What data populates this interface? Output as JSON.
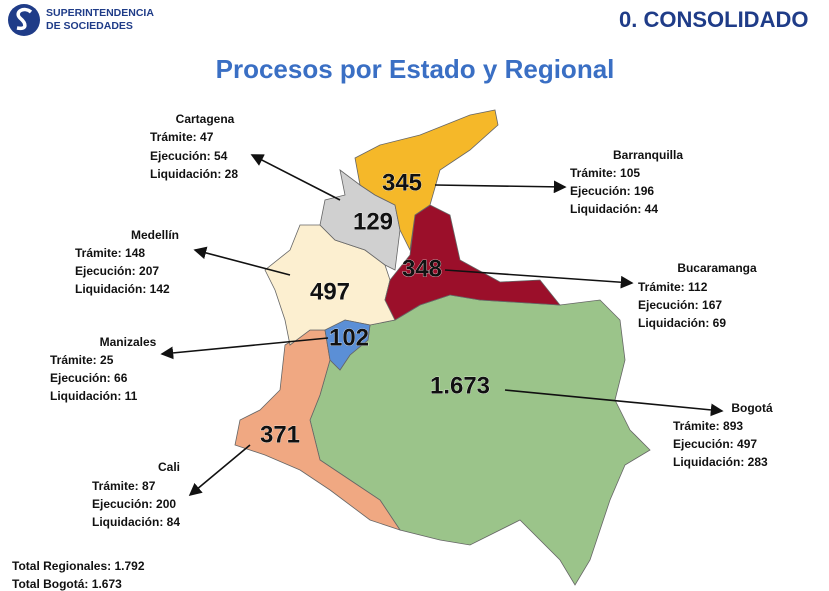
{
  "header": {
    "logo_text": [
      "SUPERINTENDENCIA",
      "DE SOCIEDADES"
    ],
    "section": "0. CONSOLIDADO"
  },
  "title": "Procesos por Estado y Regional",
  "regions": [
    {
      "name": "Cartagena",
      "total": "129",
      "lines": [
        "Trámite: 47",
        "Ejecución: 54",
        "Liquidación: 28"
      ]
    },
    {
      "name": "Barranquilla",
      "total": "345",
      "lines": [
        "Trámite: 105",
        "Ejecución: 196",
        "Liquidación: 44"
      ]
    },
    {
      "name": "Medellín",
      "total": "497",
      "lines": [
        "Trámite: 148",
        "Ejecución: 207",
        "Liquidación: 142"
      ]
    },
    {
      "name": "Bucaramanga",
      "total": "348",
      "lines": [
        "Trámite: 112",
        "Ejecución: 167",
        "Liquidación: 69"
      ]
    },
    {
      "name": "Manizales",
      "total": "102",
      "lines": [
        "Trámite: 25",
        "Ejecución: 66",
        "Liquidación: 11"
      ]
    },
    {
      "name": "Bogotá",
      "total": "1.673",
      "lines": [
        "Trámite: 893",
        "Ejecución: 497",
        "Liquidación: 283"
      ]
    },
    {
      "name": "Cali",
      "total": "371",
      "lines": [
        "Trámite: 87",
        "Ejecución: 200",
        "Liquidación: 84"
      ]
    }
  ],
  "totals": [
    "Total Regionales: 1.792",
    "Total Bogotá: 1.673"
  ]
}
